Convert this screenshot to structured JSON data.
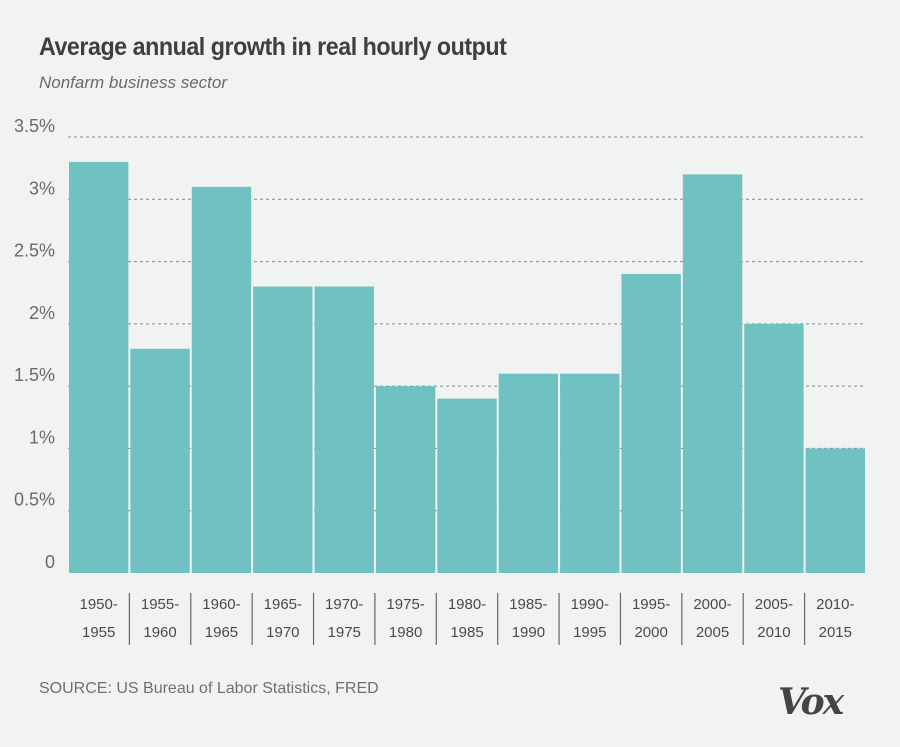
{
  "header": {
    "title": "Average annual growth in real hourly output",
    "subtitle": "Nonfarm business sector"
  },
  "footer": {
    "source": "SOURCE: US Bureau of Labor Statistics, FRED",
    "logo": "Vox"
  },
  "colors": {
    "bar": "#6fc2c1",
    "background": "#f1f2f2",
    "grid": "#888888"
  },
  "chart_data": {
    "type": "bar",
    "title": "Average annual growth in real hourly output",
    "subtitle": "Nonfarm business sector",
    "xlabel": "",
    "ylabel": "",
    "categories": [
      [
        "1950-",
        "1955"
      ],
      [
        "1955-",
        "1960"
      ],
      [
        "1960-",
        "1965"
      ],
      [
        "1965-",
        "1970"
      ],
      [
        "1970-",
        "1975"
      ],
      [
        "1975-",
        "1980"
      ],
      [
        "1980-",
        "1985"
      ],
      [
        "1985-",
        "1990"
      ],
      [
        "1990-",
        "1995"
      ],
      [
        "1995-",
        "2000"
      ],
      [
        "2000-",
        "2005"
      ],
      [
        "2005-",
        "2010"
      ],
      [
        "2010-",
        "2015"
      ]
    ],
    "values": [
      3.3,
      1.8,
      3.1,
      2.3,
      2.3,
      1.5,
      1.4,
      1.6,
      1.6,
      2.4,
      3.2,
      2.0,
      1.0
    ],
    "unit": "%",
    "ylim": [
      0,
      3.5
    ],
    "yticks": [
      0,
      0.5,
      1,
      1.5,
      2,
      2.5,
      3,
      3.5
    ],
    "ytick_labels": [
      "0",
      "0.5%",
      "1%",
      "1.5%",
      "2%",
      "2.5%",
      "3%",
      "3.5%"
    ],
    "grid": true,
    "grid_style": "dashed",
    "legend": "none"
  }
}
